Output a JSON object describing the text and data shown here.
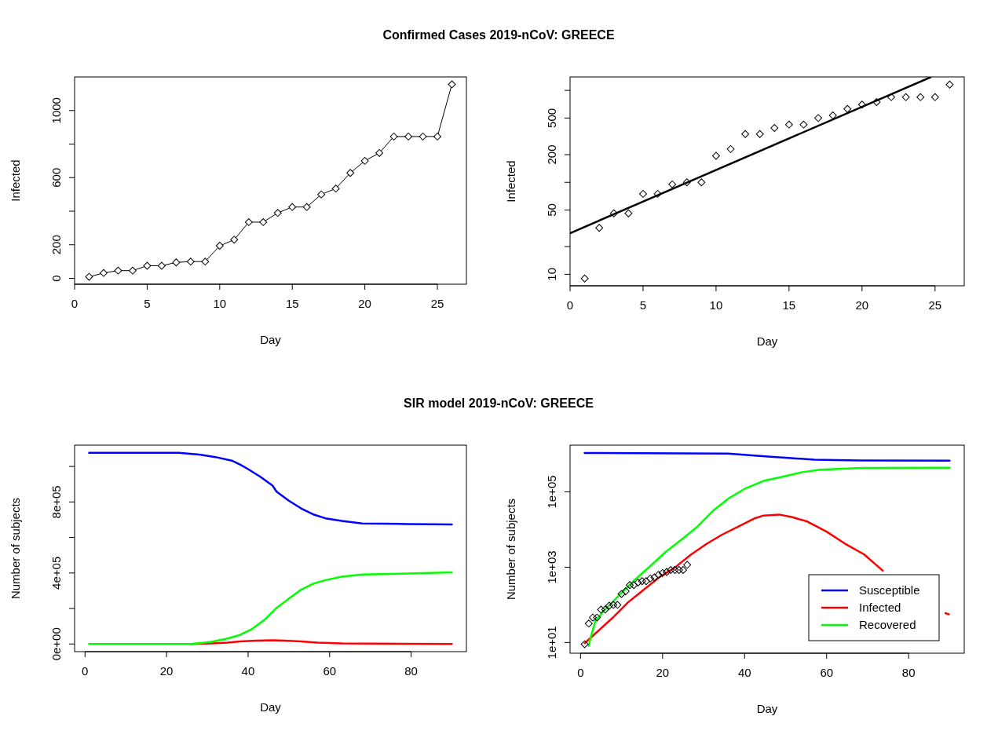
{
  "chart_data": [
    {
      "type": "line",
      "title": "Confirmed Cases 2019-nCoV: GREECE",
      "xlabel": "Day",
      "ylabel": "Infected",
      "marker": "diamond",
      "line_style": "solid",
      "x": [
        1,
        2,
        3,
        4,
        5,
        6,
        7,
        8,
        9,
        10,
        11,
        12,
        13,
        14,
        15,
        16,
        17,
        18,
        19,
        20,
        21,
        22,
        23,
        24,
        25,
        26
      ],
      "series": [
        {
          "color": "#000000",
          "values": [
            9,
            32,
            46,
            46,
            75,
            75,
            95,
            100,
            100,
            194,
            230,
            335,
            335,
            390,
            425,
            425,
            500,
            535,
            628,
            700,
            747,
            845,
            845,
            845,
            845,
            1156
          ]
        }
      ],
      "xlim": [
        0,
        27
      ],
      "xticks": [
        0,
        5,
        10,
        15,
        20,
        25
      ],
      "ylim": [
        -35,
        1200
      ],
      "yticks": [
        0,
        200,
        {
          "value": 400,
          "label": null
        },
        600,
        {
          "value": 800,
          "label": null
        },
        1000
      ]
    },
    {
      "type": "scatter",
      "xlabel": "Day",
      "ylabel": "Infected",
      "marker": "diamond",
      "log": "y",
      "x": [
        1,
        2,
        3,
        4,
        5,
        6,
        7,
        8,
        9,
        10,
        11,
        12,
        13,
        14,
        15,
        16,
        17,
        18,
        19,
        20,
        21,
        22,
        23,
        24,
        25,
        26
      ],
      "series": [
        {
          "color": "#000000",
          "values": [
            9,
            32,
            46,
            46,
            75,
            75,
            95,
            100,
            100,
            194,
            230,
            335,
            335,
            390,
            425,
            425,
            500,
            535,
            628,
            700,
            747,
            845,
            845,
            845,
            845,
            1156
          ]
        },
        {
          "type": "line",
          "marker": "none",
          "line_style": "solid",
          "color": "#000000",
          "x": [
            0,
            24.7
          ],
          "values": [
            28,
            1393
          ]
        }
      ],
      "xlim": [
        0,
        27
      ],
      "xticks": [
        0,
        5,
        10,
        15,
        20,
        25
      ],
      "ylim": [
        7.5,
        1400
      ],
      "yticks": [
        10,
        {
          "value": 20,
          "label": null
        },
        50,
        {
          "value": 100,
          "label": null
        },
        200,
        500,
        {
          "value": 1000,
          "label": null
        }
      ]
    },
    {
      "type": "line",
      "title": "SIR model 2019-nCoV: GREECE",
      "xlabel": "Day",
      "ylabel": "Number of subjects",
      "marker": "none",
      "line_style": "solid",
      "series": [
        {
          "color": "#0000ff",
          "x": [
            1,
            23,
            28,
            32,
            36,
            38,
            40,
            43,
            46,
            47,
            50,
            53,
            56,
            59,
            63,
            68,
            79,
            90
          ],
          "values": [
            1077000,
            1077000,
            1067000,
            1053000,
            1033000,
            1011000,
            985000,
            942000,
            892000,
            858000,
            807000,
            764000,
            730000,
            708000,
            693000,
            679000,
            676000,
            673000
          ]
        },
        {
          "color": "#ff0000",
          "x": [
            26,
            31,
            35,
            38,
            42,
            46,
            49,
            53,
            57,
            63,
            90
          ],
          "values": [
            0,
            3000,
            8000,
            14000,
            19000,
            21000,
            19000,
            14000,
            8000,
            3000,
            0
          ]
        },
        {
          "color": "#00ff00",
          "x": [
            1,
            26,
            31,
            35,
            38,
            41,
            44,
            47,
            50,
            53,
            56,
            59,
            63,
            68,
            79,
            90
          ],
          "values": [
            0,
            0,
            12000,
            31000,
            51000,
            85000,
            136000,
            204000,
            255000,
            306000,
            340000,
            360000,
            379000,
            391000,
            397000,
            404000
          ]
        }
      ],
      "xlim": [
        -2.56,
        93.56
      ],
      "xticks": [
        0,
        20,
        40,
        60,
        80
      ],
      "ylim": [
        -43000,
        1120000
      ],
      "yticks": [
        {
          "value": 0,
          "label": "0e+00"
        },
        {
          "value": 200000,
          "label": null
        },
        {
          "value": 400000,
          "label": "4e+05"
        },
        {
          "value": 600000,
          "label": null
        },
        {
          "value": 800000,
          "label": "8e+05"
        },
        {
          "value": 1000000,
          "label": null
        }
      ]
    },
    {
      "type": "line",
      "xlabel": "Day",
      "ylabel": "Number of subjects",
      "marker": "none",
      "line_style": "solid",
      "log": "y",
      "legend": "bottom right",
      "series": [
        {
          "name": "Susceptible",
          "color": "#0000ff",
          "x": [
            1,
            36,
            45,
            52,
            57,
            68,
            90
          ],
          "values": [
            1077000,
            1033000,
            880000,
            780000,
            720000,
            679000,
            673000
          ]
        },
        {
          "name": "Infected",
          "color": "#ff0000",
          "x": [
            1,
            4,
            7.8,
            11.6,
            15.5,
            19.3,
            23,
            26.9,
            30.8,
            34.6,
            38.5,
            42.3,
            44.6,
            48.4,
            51.5,
            55.3,
            59.9,
            64.5,
            69.1,
            73.7,
            76,
            89,
            89.8
          ],
          "values": [
            9.6,
            19,
            45,
            117,
            256,
            550,
            980,
            2140,
            4200,
            7400,
            12000,
            19500,
            23500,
            25000,
            21500,
            16300,
            8900,
            4200,
            2200,
            810,
            null,
            60,
            56
          ]
        },
        {
          "name": "Recovered",
          "color": "#00ff00",
          "x": [
            2,
            2.5,
            3.6,
            5.5,
            9.3,
            13.2,
            17,
            20.8,
            24.7,
            28.5,
            32.3,
            36.2,
            40,
            44.6,
            48.4,
            53.8,
            58.4,
            69,
            90
          ],
          "values": [
            8.2,
            14,
            37,
            66,
            174,
            457,
            1070,
            2570,
            5500,
            12000,
            31600,
            68000,
            120000,
            195000,
            240000,
            330000,
            390000,
            430000,
            440000
          ]
        },
        {
          "type": "scatter",
          "marker": "diamond",
          "color": "#000000",
          "x": [
            1,
            2,
            3,
            4,
            5,
            6,
            7,
            8,
            9,
            10,
            11,
            12,
            13,
            14,
            15,
            16,
            17,
            18,
            19,
            20,
            21,
            22,
            23,
            24,
            25,
            26
          ],
          "values": [
            9,
            32,
            46,
            46,
            75,
            75,
            95,
            100,
            100,
            194,
            230,
            335,
            335,
            390,
            425,
            425,
            500,
            535,
            628,
            700,
            747,
            845,
            845,
            845,
            845,
            1156
          ]
        }
      ],
      "xlim": [
        -2.56,
        93.56
      ],
      "xticks": [
        0,
        20,
        40,
        60,
        80
      ],
      "ylim": [
        5.2,
        1740000
      ],
      "yticks": [
        {
          "value": 10,
          "label": "1e+01"
        },
        {
          "value": 1000,
          "label": "1e+03"
        },
        {
          "value": 100000,
          "label": "1e+05"
        }
      ]
    }
  ]
}
